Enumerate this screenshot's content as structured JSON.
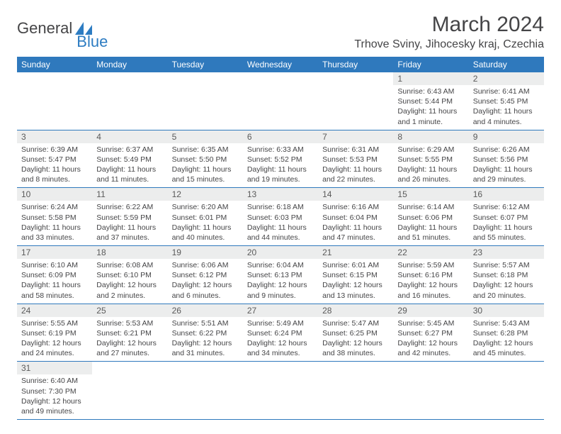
{
  "brand": {
    "general": "General",
    "blue": "Blue"
  },
  "title": "March 2024",
  "location": "Trhove Sviny, Jihocesky kraj, Czechia",
  "day_names": [
    "Sunday",
    "Monday",
    "Tuesday",
    "Wednesday",
    "Thursday",
    "Friday",
    "Saturday"
  ],
  "colors": {
    "header_bg": "#2f79bd",
    "header_text": "#ffffff",
    "daynum_bg": "#eceded",
    "body_text": "#454547",
    "rule": "#2f79bd"
  },
  "typography": {
    "title_fontsize": 30,
    "location_fontsize": 16,
    "dayname_fontsize": 12,
    "daynum_fontsize": 12,
    "body_fontsize": 10.5
  },
  "first_weekday_index": 5,
  "days": [
    {
      "n": 1,
      "sunrise": "6:43 AM",
      "sunset": "5:44 PM",
      "daylight": "11 hours and 1 minute."
    },
    {
      "n": 2,
      "sunrise": "6:41 AM",
      "sunset": "5:45 PM",
      "daylight": "11 hours and 4 minutes."
    },
    {
      "n": 3,
      "sunrise": "6:39 AM",
      "sunset": "5:47 PM",
      "daylight": "11 hours and 8 minutes."
    },
    {
      "n": 4,
      "sunrise": "6:37 AM",
      "sunset": "5:49 PM",
      "daylight": "11 hours and 11 minutes."
    },
    {
      "n": 5,
      "sunrise": "6:35 AM",
      "sunset": "5:50 PM",
      "daylight": "11 hours and 15 minutes."
    },
    {
      "n": 6,
      "sunrise": "6:33 AM",
      "sunset": "5:52 PM",
      "daylight": "11 hours and 19 minutes."
    },
    {
      "n": 7,
      "sunrise": "6:31 AM",
      "sunset": "5:53 PM",
      "daylight": "11 hours and 22 minutes."
    },
    {
      "n": 8,
      "sunrise": "6:29 AM",
      "sunset": "5:55 PM",
      "daylight": "11 hours and 26 minutes."
    },
    {
      "n": 9,
      "sunrise": "6:26 AM",
      "sunset": "5:56 PM",
      "daylight": "11 hours and 29 minutes."
    },
    {
      "n": 10,
      "sunrise": "6:24 AM",
      "sunset": "5:58 PM",
      "daylight": "11 hours and 33 minutes."
    },
    {
      "n": 11,
      "sunrise": "6:22 AM",
      "sunset": "5:59 PM",
      "daylight": "11 hours and 37 minutes."
    },
    {
      "n": 12,
      "sunrise": "6:20 AM",
      "sunset": "6:01 PM",
      "daylight": "11 hours and 40 minutes."
    },
    {
      "n": 13,
      "sunrise": "6:18 AM",
      "sunset": "6:03 PM",
      "daylight": "11 hours and 44 minutes."
    },
    {
      "n": 14,
      "sunrise": "6:16 AM",
      "sunset": "6:04 PM",
      "daylight": "11 hours and 47 minutes."
    },
    {
      "n": 15,
      "sunrise": "6:14 AM",
      "sunset": "6:06 PM",
      "daylight": "11 hours and 51 minutes."
    },
    {
      "n": 16,
      "sunrise": "6:12 AM",
      "sunset": "6:07 PM",
      "daylight": "11 hours and 55 minutes."
    },
    {
      "n": 17,
      "sunrise": "6:10 AM",
      "sunset": "6:09 PM",
      "daylight": "11 hours and 58 minutes."
    },
    {
      "n": 18,
      "sunrise": "6:08 AM",
      "sunset": "6:10 PM",
      "daylight": "12 hours and 2 minutes."
    },
    {
      "n": 19,
      "sunrise": "6:06 AM",
      "sunset": "6:12 PM",
      "daylight": "12 hours and 6 minutes."
    },
    {
      "n": 20,
      "sunrise": "6:04 AM",
      "sunset": "6:13 PM",
      "daylight": "12 hours and 9 minutes."
    },
    {
      "n": 21,
      "sunrise": "6:01 AM",
      "sunset": "6:15 PM",
      "daylight": "12 hours and 13 minutes."
    },
    {
      "n": 22,
      "sunrise": "5:59 AM",
      "sunset": "6:16 PM",
      "daylight": "12 hours and 16 minutes."
    },
    {
      "n": 23,
      "sunrise": "5:57 AM",
      "sunset": "6:18 PM",
      "daylight": "12 hours and 20 minutes."
    },
    {
      "n": 24,
      "sunrise": "5:55 AM",
      "sunset": "6:19 PM",
      "daylight": "12 hours and 24 minutes."
    },
    {
      "n": 25,
      "sunrise": "5:53 AM",
      "sunset": "6:21 PM",
      "daylight": "12 hours and 27 minutes."
    },
    {
      "n": 26,
      "sunrise": "5:51 AM",
      "sunset": "6:22 PM",
      "daylight": "12 hours and 31 minutes."
    },
    {
      "n": 27,
      "sunrise": "5:49 AM",
      "sunset": "6:24 PM",
      "daylight": "12 hours and 34 minutes."
    },
    {
      "n": 28,
      "sunrise": "5:47 AM",
      "sunset": "6:25 PM",
      "daylight": "12 hours and 38 minutes."
    },
    {
      "n": 29,
      "sunrise": "5:45 AM",
      "sunset": "6:27 PM",
      "daylight": "12 hours and 42 minutes."
    },
    {
      "n": 30,
      "sunrise": "5:43 AM",
      "sunset": "6:28 PM",
      "daylight": "12 hours and 45 minutes."
    },
    {
      "n": 31,
      "sunrise": "6:40 AM",
      "sunset": "7:30 PM",
      "daylight": "12 hours and 49 minutes."
    }
  ],
  "labels": {
    "sunrise": "Sunrise:",
    "sunset": "Sunset:",
    "daylight": "Daylight:"
  }
}
